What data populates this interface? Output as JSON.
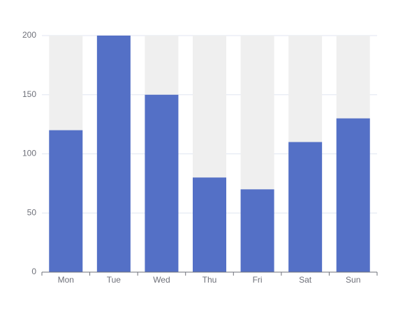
{
  "chart_data": {
    "type": "bar",
    "categories": [
      "Mon",
      "Tue",
      "Wed",
      "Thu",
      "Fri",
      "Sat",
      "Sun"
    ],
    "values": [
      120,
      200,
      150,
      80,
      70,
      110,
      130
    ],
    "color": "#5470c6",
    "background_color": "#efefef",
    "ylim": [
      0,
      200
    ],
    "yticks": [
      0,
      50,
      100,
      150,
      200
    ],
    "grid": true
  }
}
